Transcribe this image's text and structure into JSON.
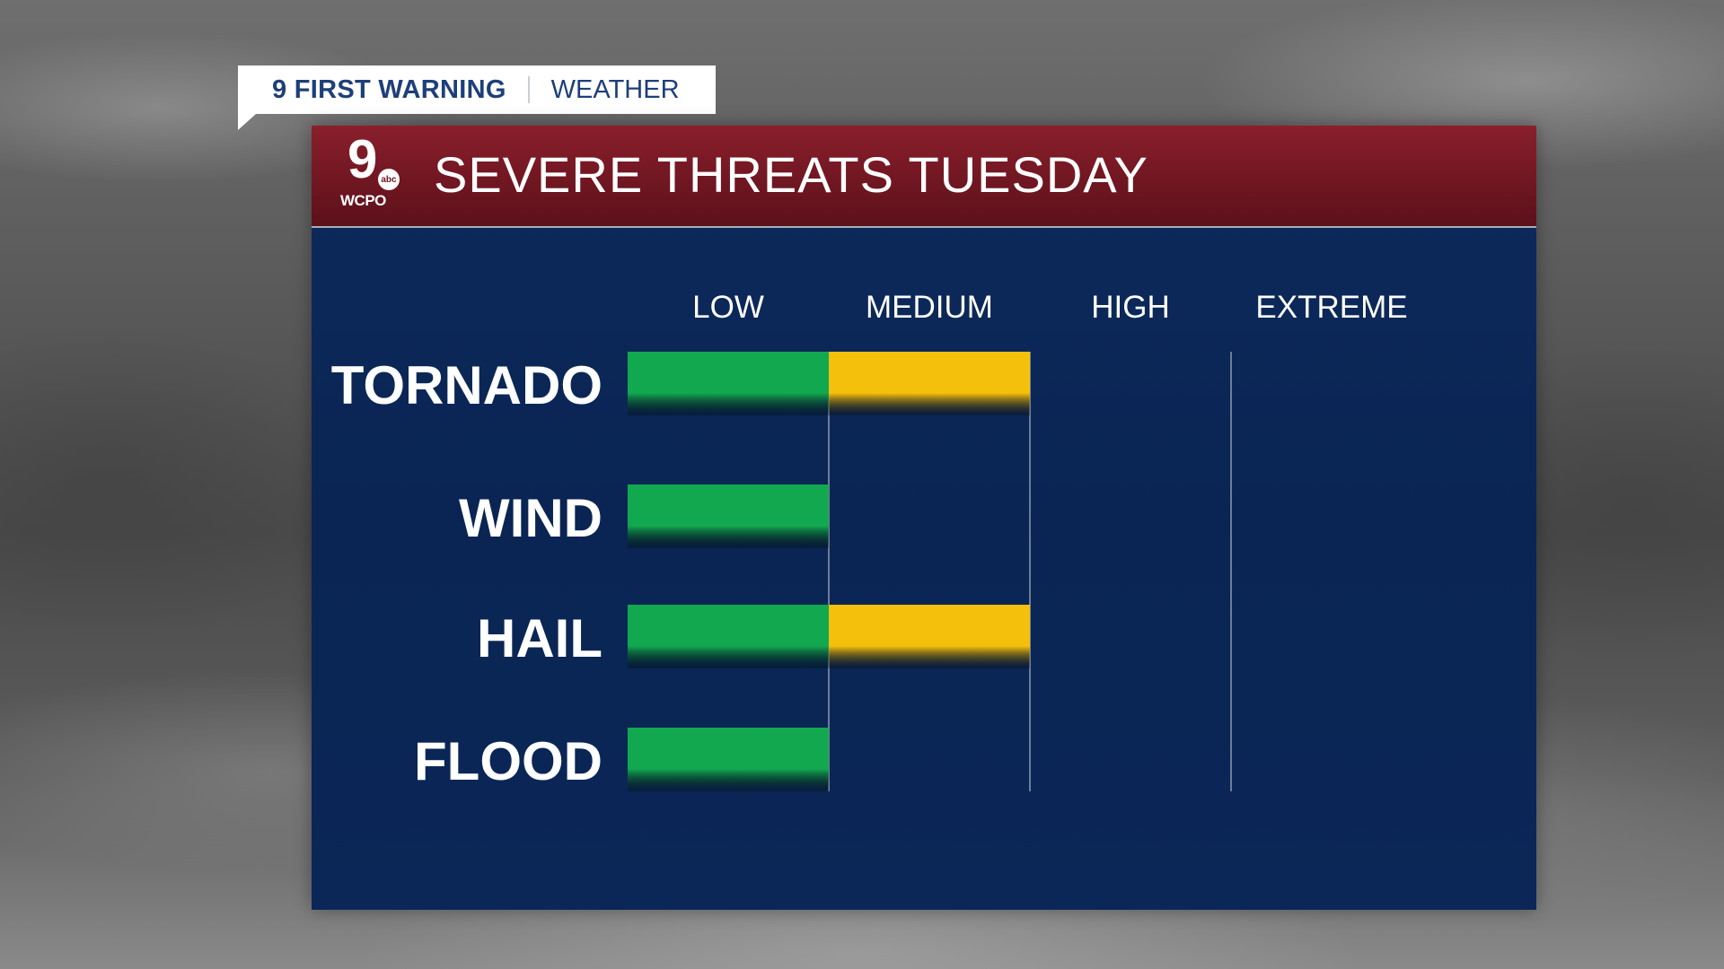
{
  "tag": {
    "brand": "9 FIRST WARNING",
    "section": "WEATHER"
  },
  "logo": {
    "number": "9",
    "network": "abc",
    "call_letters": "WCPO"
  },
  "header": {
    "title": "SEVERE THREATS TUESDAY"
  },
  "colors": {
    "low": "#12a84f",
    "medium": "#f5c00c",
    "header": "#6e1621",
    "panel": "#0b2757"
  },
  "chart_data": {
    "type": "bar",
    "orientation": "horizontal",
    "title": "SEVERE THREATS TUESDAY",
    "levels": [
      "LOW",
      "MEDIUM",
      "HIGH",
      "EXTREME"
    ],
    "categories": [
      "TORNADO",
      "WIND",
      "HAIL",
      "FLOOD"
    ],
    "values": [
      2,
      1,
      2,
      1
    ],
    "xlim": [
      0,
      4
    ],
    "segment_colors": [
      "#12a84f",
      "#f5c00c"
    ],
    "grid": true
  }
}
